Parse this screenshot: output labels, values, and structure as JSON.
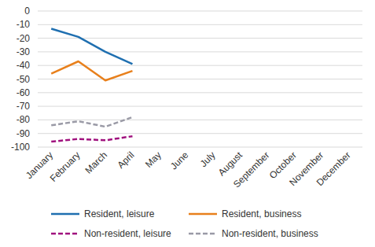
{
  "chart_data": {
    "type": "line",
    "categories": [
      "January",
      "February",
      "March",
      "April",
      "May",
      "June",
      "July",
      "August",
      "September",
      "October",
      "November",
      "December"
    ],
    "series": [
      {
        "name": "Resident, leisure",
        "color": "#1f6fb0",
        "line_style": "solid",
        "values": [
          -13,
          -19,
          -30,
          -39,
          null,
          null,
          null,
          null,
          null,
          null,
          null,
          null
        ]
      },
      {
        "name": "Resident, business",
        "color": "#e8801c",
        "line_style": "solid",
        "values": [
          -46,
          -37,
          -51,
          -44,
          null,
          null,
          null,
          null,
          null,
          null,
          null,
          null
        ]
      },
      {
        "name": "Non-resident, leisure",
        "color": "#a0127e",
        "line_style": "dashed",
        "values": [
          -96,
          -94,
          -95,
          -92,
          null,
          null,
          null,
          null,
          null,
          null,
          null,
          null
        ]
      },
      {
        "name": "Non-resident, business",
        "color": "#9a9aa6",
        "line_style": "dashed",
        "values": [
          -84,
          -81,
          -85,
          -78,
          null,
          null,
          null,
          null,
          null,
          null,
          null,
          null
        ]
      }
    ],
    "ylim": [
      -100,
      0
    ],
    "yticks": [
      -100,
      -90,
      -80,
      -70,
      -60,
      -50,
      -40,
      -30,
      -20,
      -10,
      0
    ],
    "grid": true,
    "legend": "bottom"
  }
}
